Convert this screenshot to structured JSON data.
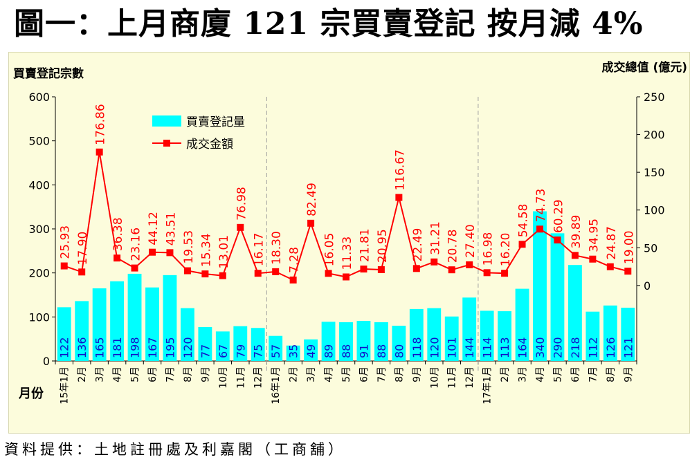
{
  "headline": "圖一：上月商廈 121 宗買賣登記 按月減 4%",
  "footer": "資料提供：土地註冊處及利嘉閣（工商舖）",
  "colors": {
    "bar": "#00ffff",
    "line": "#ff0000",
    "marker": "#ff0000",
    "bar_label": "#1010c8",
    "line_label": "#ff0000",
    "panel": "#fcfcdc"
  },
  "chart_data": {
    "type": "bar+line",
    "y_left_title": "買賣登記宗數",
    "y_right_title": "成交總值 (億元)",
    "x_title": "月份",
    "y_left_lim": [
      0,
      600
    ],
    "y_left_ticks": [
      "0",
      "100",
      "200",
      "300",
      "400",
      "500",
      "600"
    ],
    "y_right_lim": [
      -100,
      250
    ],
    "y_right_ticks": [
      "0",
      "50",
      "100",
      "150",
      "200",
      "250"
    ],
    "legend": {
      "bar": "買賣登記量",
      "line": "成交金額"
    },
    "categories": [
      "15年1月",
      "2月",
      "3月",
      "4月",
      "5月",
      "6月",
      "7月",
      "8月",
      "9月",
      "10月",
      "11月",
      "12月",
      "16年1月",
      "2月",
      "3月",
      "4月",
      "5月",
      "6月",
      "7月",
      "8月",
      "9月",
      "10月",
      "11月",
      "12月",
      "17年1月",
      "2月",
      "3月",
      "4月",
      "5月",
      "6月",
      "7月",
      "8月",
      "9月"
    ],
    "series": [
      {
        "name": "買賣登記量",
        "kind": "bar",
        "axis": "left",
        "values": [
          122,
          136,
          165,
          181,
          198,
          167,
          195,
          120,
          77,
          67,
          79,
          75,
          57,
          35,
          49,
          89,
          88,
          91,
          88,
          80,
          118,
          120,
          101,
          144,
          114,
          113,
          164,
          340,
          290,
          218,
          112,
          126,
          121
        ]
      },
      {
        "name": "成交金額",
        "kind": "line",
        "axis": "right",
        "values": [
          25.93,
          17.9,
          176.86,
          36.38,
          23.16,
          44.12,
          43.51,
          19.53,
          15.34,
          13.01,
          76.98,
          16.17,
          18.3,
          7.28,
          82.49,
          16.05,
          11.33,
          21.81,
          20.95,
          116.67,
          22.49,
          31.21,
          20.78,
          27.4,
          16.98,
          16.2,
          54.58,
          74.73,
          60.29,
          39.89,
          34.95,
          24.87,
          19.0
        ],
        "labels": [
          "25.93",
          "17.90",
          "176.86",
          "36.38",
          "23.16",
          "44.12",
          "43.51",
          "19.53",
          "15.34",
          "13.01",
          "76.98",
          "16.17",
          "18.30",
          "7.28",
          "82.49",
          "16.05",
          "11.33",
          "21.81",
          "20.95",
          "116.67",
          "22.49",
          "31.21",
          "20.78",
          "27.40",
          "16.98",
          "16.20",
          "54.58",
          "74.73",
          "60.29",
          "39.89",
          "34.95",
          "24.87",
          "19.00"
        ]
      }
    ],
    "year_dividers_before": [
      "16年1月",
      "17年1月"
    ]
  }
}
